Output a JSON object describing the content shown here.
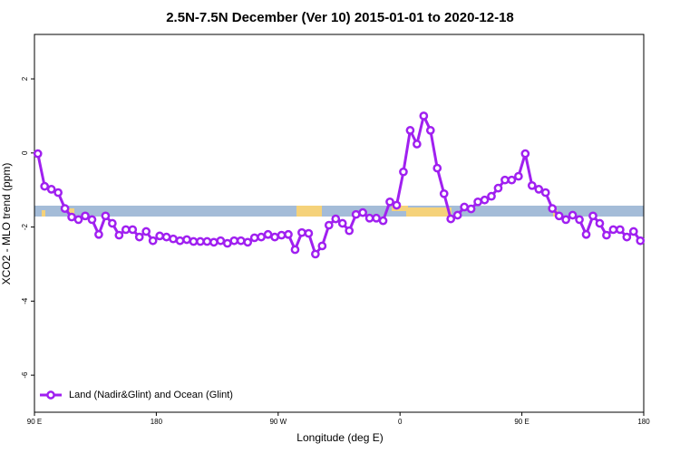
{
  "chart_data": {
    "type": "line",
    "title": "2.5N-7.5N December (Ver 10)   2015-01-01 to 2020-12-18",
    "xlabel": "Longitude (deg E)",
    "ylabel": "XCO2 - MLO trend (ppm)",
    "x": [
      92.5,
      97.5,
      102.5,
      107.5,
      112.5,
      117.5,
      122.5,
      127.5,
      132.5,
      137.5,
      142.5,
      147.5,
      152.5,
      157.5,
      162.5,
      167.5,
      172.5,
      177.5,
      182.5,
      187.5,
      192.5,
      197.5,
      202.5,
      207.5,
      212.5,
      217.5,
      222.5,
      227.5,
      232.5,
      237.5,
      242.5,
      247.5,
      252.5,
      257.5,
      262.5,
      267.5,
      272.5,
      277.5,
      282.5,
      287.5,
      292.5,
      297.5,
      302.5,
      307.5,
      312.5,
      317.5,
      322.5,
      327.5,
      332.5,
      337.5,
      342.5,
      347.5,
      352.5,
      357.5,
      362.5,
      367.5,
      372.5,
      377.5,
      382.5,
      387.5,
      392.5,
      397.5,
      402.5,
      407.5,
      412.5,
      417.5,
      422.5,
      427.5,
      432.5,
      437.5,
      442.5,
      447.5,
      452.5,
      457.5,
      462.5,
      467.5,
      472.5,
      477.5,
      482.5,
      487.5,
      492.5,
      497.5,
      502.5,
      507.5,
      512.5,
      517.5,
      522.5,
      527.5,
      532.5,
      537.5
    ],
    "series": [
      {
        "name": "Land (Nadir&Glint) and Ocean (Glint)",
        "color": "#a020f0",
        "values": [
          -0.02,
          -0.9,
          -0.98,
          -1.07,
          -1.5,
          -1.73,
          -1.8,
          -1.7,
          -1.8,
          -2.2,
          -1.7,
          -1.9,
          -2.22,
          -2.07,
          -2.07,
          -2.27,
          -2.12,
          -2.37,
          -2.24,
          -2.27,
          -2.32,
          -2.37,
          -2.34,
          -2.39,
          -2.39,
          -2.39,
          -2.41,
          -2.37,
          -2.44,
          -2.37,
          -2.37,
          -2.41,
          -2.29,
          -2.27,
          -2.2,
          -2.27,
          -2.22,
          -2.2,
          -2.61,
          -2.15,
          -2.17,
          -2.73,
          -2.51,
          -1.95,
          -1.78,
          -1.9,
          -2.1,
          -1.66,
          -1.61,
          -1.76,
          -1.76,
          -1.83,
          -1.32,
          -1.41,
          -0.51,
          0.61,
          0.24,
          1.0,
          0.61,
          -0.41,
          -1.1,
          -1.78,
          -1.68,
          -1.46,
          -1.51,
          -1.32,
          -1.27,
          -1.17,
          -0.95,
          -0.73,
          -0.73,
          -0.63,
          -0.02,
          -0.88,
          -0.98,
          -1.07,
          -1.5,
          -1.7,
          -1.8,
          -1.68,
          -1.8,
          -2.2,
          -1.7,
          -1.9,
          -2.22,
          -2.07,
          -2.07,
          -2.27,
          -2.12,
          -2.37
        ]
      }
    ],
    "xlim": [
      90,
      540
    ],
    "xticks": [
      {
        "value": 90,
        "label": "90 E"
      },
      {
        "value": 180,
        "label": "180"
      },
      {
        "value": 270,
        "label": "90 W"
      },
      {
        "value": 360,
        "label": "0"
      },
      {
        "value": 450,
        "label": "90 E"
      },
      {
        "value": 540,
        "label": "180"
      }
    ],
    "ylim": [
      -7,
      3.2
    ],
    "yticks": [
      -6,
      -4,
      -2,
      0,
      2
    ],
    "legend": "lower left"
  }
}
